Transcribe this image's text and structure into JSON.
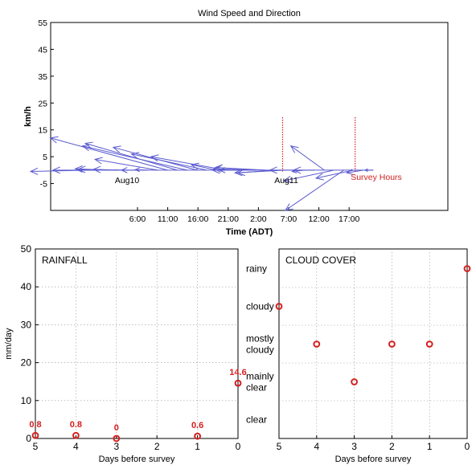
{
  "chart_data": [
    {
      "type": "quiver",
      "title": "Wind Speed and Direction",
      "xlabel": "Time (ADT)",
      "ylabel": "km/h",
      "x_ticks": [
        "6:00",
        "11:00",
        "16:00",
        "21:00",
        "2:00",
        "7:00",
        "12:00",
        "17:00"
      ],
      "y_ticks": [
        55,
        45,
        35,
        25,
        15,
        5,
        -5
      ],
      "ylim": [
        -15,
        55
      ],
      "annotations": [
        {
          "text": "Aug10",
          "x": "4:00",
          "y": -3
        },
        {
          "text": "Aug11",
          "x": "0:00",
          "y": -3
        },
        {
          "text": "Survey Hours",
          "x": "9:00",
          "y": -2,
          "color": "#d42020"
        }
      ],
      "survey_hours": [
        "6:00",
        "18:00"
      ],
      "arrow_color": "#5a5ad0",
      "vectors_kmh": [
        {
          "u": -14,
          "v": -0.5
        },
        {
          "u": -11,
          "v": 0
        },
        {
          "u": -8,
          "v": 0.5
        },
        {
          "u": -6,
          "v": 0.3
        },
        {
          "u": -12,
          "v": 0.3
        },
        {
          "u": -4,
          "v": 0
        },
        {
          "u": -3,
          "v": 0.2
        },
        {
          "u": -15,
          "v": 4
        },
        {
          "u": -28,
          "v": 12
        },
        {
          "u": -22,
          "v": 10
        },
        {
          "u": -25,
          "v": 9
        },
        {
          "u": -20,
          "v": 8.5
        },
        {
          "u": -18,
          "v": 6
        },
        {
          "u": -6,
          "v": 2
        },
        {
          "u": -18,
          "v": 5
        },
        {
          "u": -4,
          "v": 0
        },
        {
          "u": -8,
          "v": 0
        },
        {
          "u": -10,
          "v": 0.5
        },
        {
          "u": -12,
          "v": 1
        },
        {
          "u": -9,
          "v": -1
        },
        {
          "u": -12,
          "v": -1
        },
        {
          "u": -6,
          "v": 0
        },
        {
          "u": -3,
          "v": -0.5
        },
        {
          "u": -5,
          "v": 0
        },
        {
          "u": -8,
          "v": 9
        },
        {
          "u": -12,
          "v": -4
        },
        {
          "u": -14,
          "v": -15
        },
        {
          "u": -9,
          "v": -3
        },
        {
          "u": -4,
          "v": -1
        },
        {
          "u": -2,
          "v": 0
        }
      ]
    },
    {
      "type": "scatter",
      "title": "RAINFALL",
      "xlabel": "Days before survey",
      "ylabel": "mm/day",
      "x_ticks": [
        5,
        4,
        3,
        2,
        1,
        0
      ],
      "y_ticks": [
        0,
        10,
        20,
        30,
        40,
        50
      ],
      "xlim": [
        5,
        0
      ],
      "ylim": [
        0,
        50
      ],
      "x": [
        5,
        4,
        3,
        1,
        0
      ],
      "y": [
        0.8,
        0.8,
        0,
        0.6,
        14.6
      ],
      "labels": [
        "0.8",
        "0.8",
        "0",
        "0.6",
        "14.6"
      ],
      "marker_color": "#d42020"
    },
    {
      "type": "scatter",
      "title": "CLOUD COVER",
      "xlabel": "Days before survey",
      "x_ticks": [
        5,
        4,
        3,
        2,
        1,
        0
      ],
      "y_categories": [
        "clear",
        "mainly clear",
        "mostly cloudy",
        "cloudy",
        "rainy"
      ],
      "xlim": [
        5,
        0
      ],
      "x": [
        5,
        4,
        3,
        2,
        1,
        0
      ],
      "y": [
        "cloudy",
        "mostly cloudy",
        "mainly clear",
        "mostly cloudy",
        "mostly cloudy",
        "rainy"
      ],
      "marker_color": "#d42020"
    }
  ]
}
